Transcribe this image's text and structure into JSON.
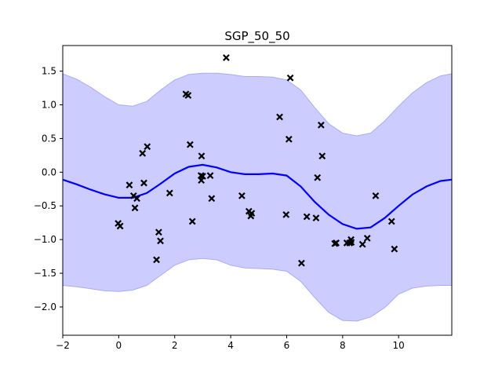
{
  "chart_data": {
    "type": "scatter",
    "title": "SGP_50_50",
    "xlabel": "",
    "ylabel": "",
    "xlim": [
      -2,
      11.9
    ],
    "ylim": [
      -2.42,
      1.88
    ],
    "x_ticks": [
      -2,
      0,
      2,
      4,
      6,
      8,
      10
    ],
    "x_tick_labels": [
      "−2",
      "0",
      "2",
      "4",
      "6",
      "8",
      "10"
    ],
    "y_ticks": [
      -2.0,
      -1.5,
      -1.0,
      -0.5,
      0.0,
      0.5,
      1.0,
      1.5
    ],
    "y_tick_labels": [
      "−2.0",
      "−1.5",
      "−1.0",
      "−0.5",
      "0.0",
      "0.5",
      "1.0",
      "1.5"
    ],
    "grid": false,
    "colors": {
      "mean_line": "#0000ff",
      "band_fill": "#ccccff",
      "band_edge": "#aaaaff",
      "points": "#000000"
    },
    "series": [
      {
        "type": "line",
        "x": [
          -2.0,
          -1.5,
          -1.0,
          -0.5,
          0.0,
          0.5,
          1.0,
          1.5,
          2.0,
          2.5,
          3.0,
          3.5,
          4.0,
          4.5,
          5.0,
          5.5,
          6.0,
          6.5,
          7.0,
          7.5,
          8.0,
          8.5,
          9.0,
          9.5,
          10.0,
          10.5,
          11.0,
          11.5,
          11.9
        ],
        "y": [
          -0.11,
          -0.18,
          -0.26,
          -0.33,
          -0.38,
          -0.38,
          -0.31,
          -0.17,
          -0.02,
          0.08,
          0.11,
          0.07,
          0.0,
          -0.03,
          -0.03,
          -0.02,
          -0.05,
          -0.21,
          -0.44,
          -0.63,
          -0.77,
          -0.84,
          -0.82,
          -0.68,
          -0.5,
          -0.33,
          -0.21,
          -0.13,
          -0.11
        ]
      },
      {
        "type": "area",
        "x": [
          -2.0,
          -1.5,
          -1.0,
          -0.5,
          0.0,
          0.5,
          1.0,
          1.5,
          2.0,
          2.5,
          3.0,
          3.5,
          4.0,
          4.5,
          5.0,
          5.5,
          6.0,
          6.5,
          7.0,
          7.5,
          8.0,
          8.5,
          9.0,
          9.5,
          10.0,
          10.5,
          11.0,
          11.5,
          11.9
        ],
        "upper": [
          1.46,
          1.38,
          1.26,
          1.12,
          1.0,
          0.98,
          1.05,
          1.22,
          1.37,
          1.45,
          1.47,
          1.47,
          1.45,
          1.42,
          1.42,
          1.41,
          1.37,
          1.22,
          0.96,
          0.72,
          0.58,
          0.54,
          0.58,
          0.76,
          0.98,
          1.18,
          1.33,
          1.43,
          1.46
        ],
        "lower": [
          -1.68,
          -1.7,
          -1.73,
          -1.76,
          -1.77,
          -1.75,
          -1.68,
          -1.53,
          -1.38,
          -1.3,
          -1.28,
          -1.3,
          -1.38,
          -1.42,
          -1.43,
          -1.44,
          -1.47,
          -1.62,
          -1.86,
          -2.08,
          -2.2,
          -2.21,
          -2.15,
          -2.01,
          -1.81,
          -1.72,
          -1.69,
          -1.68,
          -1.68
        ]
      },
      {
        "type": "scatter",
        "x": [
          -0.02,
          0.05,
          0.38,
          0.53,
          0.58,
          0.65,
          0.85,
          0.9,
          1.02,
          1.35,
          1.43,
          1.49,
          1.82,
          2.4,
          2.48,
          2.55,
          2.63,
          2.94,
          2.95,
          2.96,
          3.0,
          3.27,
          3.32,
          3.84,
          4.4,
          4.65,
          4.72,
          4.75,
          5.75,
          5.98,
          6.08,
          6.13,
          6.53,
          6.72,
          7.05,
          7.1,
          7.23,
          7.27,
          7.72,
          7.77,
          8.15,
          8.25,
          8.3,
          8.31,
          8.71,
          8.88,
          9.18,
          9.75,
          9.85
        ],
        "y": [
          -0.76,
          -0.8,
          -0.19,
          -0.35,
          -0.53,
          -0.39,
          0.28,
          -0.16,
          0.38,
          -1.3,
          -0.89,
          -1.02,
          -0.31,
          1.16,
          1.14,
          0.41,
          -0.73,
          -0.05,
          -0.12,
          0.24,
          -0.06,
          -0.05,
          -0.39,
          1.7,
          -0.35,
          -0.58,
          -0.65,
          -0.61,
          0.82,
          -0.63,
          0.49,
          1.4,
          -1.35,
          -0.66,
          -0.68,
          -0.08,
          0.7,
          0.24,
          -1.06,
          -1.05,
          -1.05,
          -1.05,
          -1.0,
          -1.04,
          -1.07,
          -0.98,
          -0.35,
          -0.73,
          -1.14
        ]
      }
    ]
  }
}
